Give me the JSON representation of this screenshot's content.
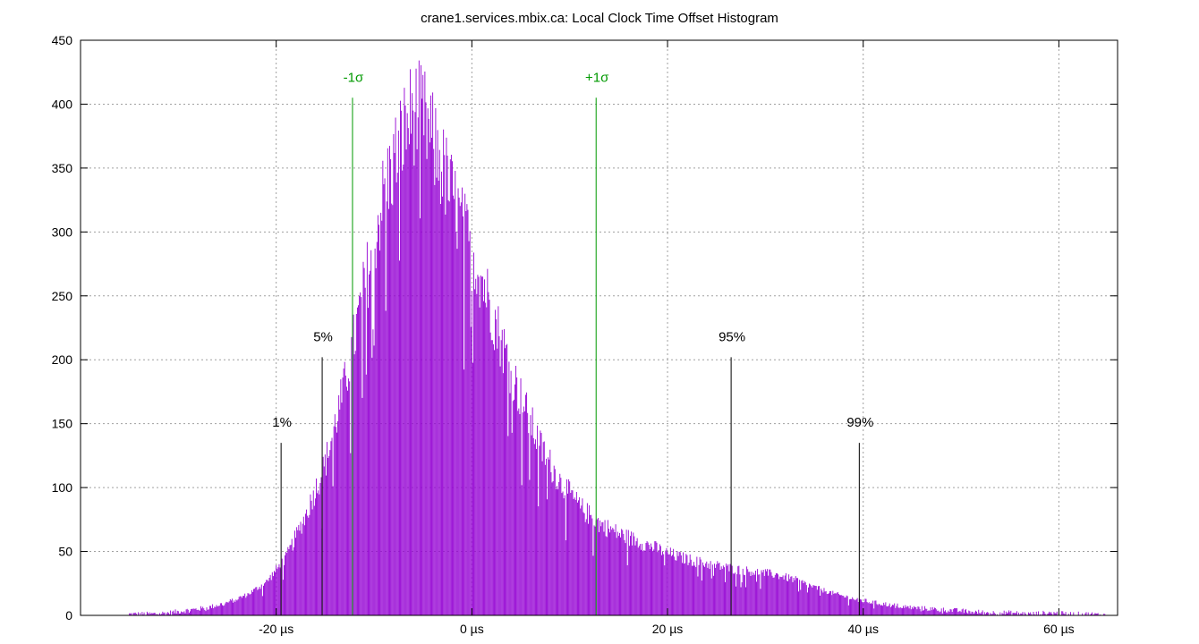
{
  "chart_data": {
    "type": "bar",
    "title": "crane1.services.mbix.ca: Local Clock Time Offset Histogram",
    "xlabel": "",
    "ylabel": "",
    "x_unit": "µs",
    "xlim": [
      -40,
      66
    ],
    "ylim": [
      0,
      450
    ],
    "grid": true,
    "colors": {
      "bars": "#9400d3",
      "sigma": "#009900",
      "percentile": "#000000",
      "grid": "#a0a0a0"
    },
    "x_ticks": [
      "-20 µs",
      "0 µs",
      "20 µs",
      "40 µs",
      "60 µs"
    ],
    "x_tick_values": [
      -20,
      0,
      20,
      40,
      60
    ],
    "y_ticks": [
      0,
      50,
      100,
      150,
      200,
      250,
      300,
      350,
      400,
      450
    ],
    "bin_width_us": 0.1,
    "series": [
      {
        "description_values_bin_centers_us": [
          -35,
          -33,
          -31,
          -29,
          -27,
          -25,
          -23,
          -21,
          -19,
          -17,
          -15,
          -13,
          -11,
          -9,
          -7,
          -6,
          -5,
          -4,
          -3,
          -1,
          1,
          3,
          5,
          7,
          9,
          11,
          13,
          15,
          17,
          19,
          21,
          23,
          25,
          27,
          29,
          31,
          33,
          35,
          37,
          39,
          41,
          43,
          45,
          47,
          49,
          51,
          53,
          55,
          57,
          59,
          61,
          63,
          65
        ],
        "values": [
          1,
          1,
          2,
          4,
          6,
          10,
          16,
          26,
          45,
          78,
          118,
          180,
          255,
          330,
          378,
          395,
          390,
          370,
          350,
          305,
          265,
          215,
          170,
          132,
          105,
          85,
          72,
          64,
          58,
          52,
          46,
          42,
          39,
          36,
          34,
          32,
          28,
          22,
          17,
          13,
          10,
          8,
          6,
          5,
          4,
          3,
          2,
          2,
          1,
          2,
          1,
          1,
          0
        ]
      }
    ],
    "markers": [
      {
        "label": "1%",
        "x": -19.5,
        "height": 135,
        "kind": "percentile"
      },
      {
        "label": "5%",
        "x": -15.3,
        "height": 202,
        "kind": "percentile"
      },
      {
        "label": "95%",
        "x": 26.5,
        "height": 202,
        "kind": "percentile"
      },
      {
        "label": "99%",
        "x": 39.6,
        "height": 135,
        "kind": "percentile"
      },
      {
        "label": "-1σ",
        "x": -12.2,
        "height": 405,
        "kind": "sigma"
      },
      {
        "label": "+1σ",
        "x": 12.7,
        "height": 405,
        "kind": "sigma"
      }
    ]
  }
}
